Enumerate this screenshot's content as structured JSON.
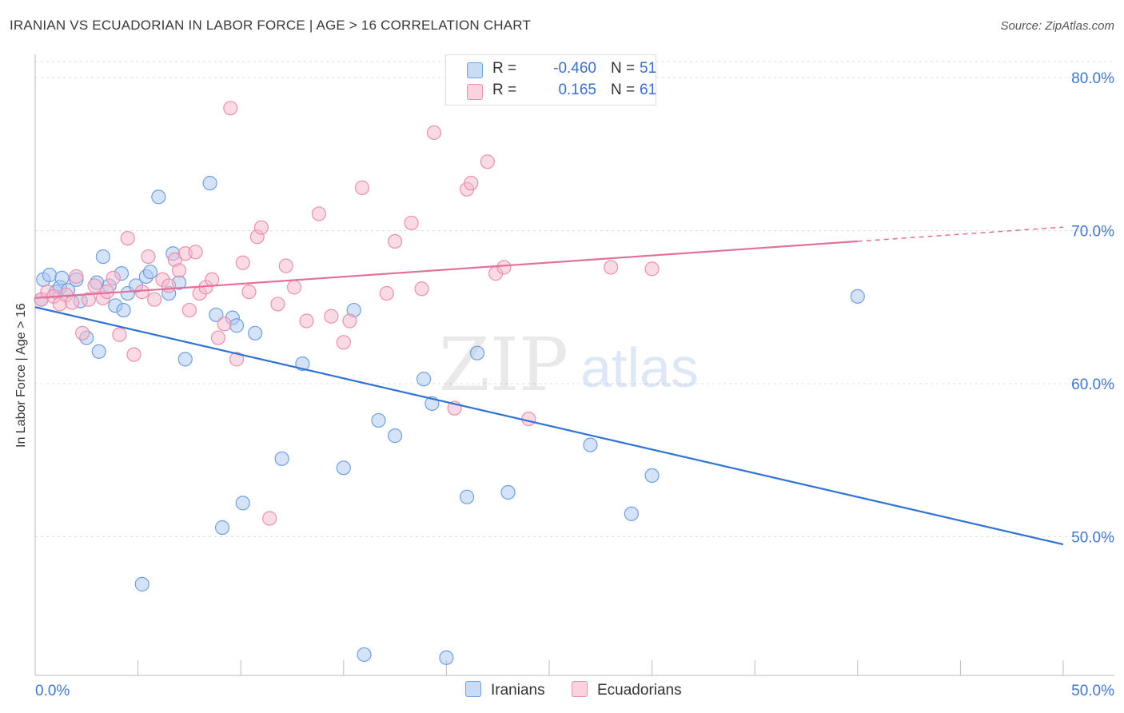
{
  "header": {
    "title": "IRANIAN VS ECUADORIAN IN LABOR FORCE | AGE > 16 CORRELATION CHART",
    "source": "Source: ZipAtlas.com"
  },
  "watermark": {
    "zip": "ZIP",
    "atlas": "atlas"
  },
  "legend": {
    "rows": [
      {
        "r_label": "R =",
        "r_value": "-0.460",
        "n_label": "N =",
        "n_value": "51",
        "color": "#a9c7f0"
      },
      {
        "r_label": "R =",
        "r_value": "0.165",
        "n_label": "N =",
        "n_value": "61",
        "color": "#f5b8cb"
      }
    ],
    "bottom": [
      {
        "label": "Iranians",
        "color": "#a9c7f0"
      },
      {
        "label": "Ecuadorians",
        "color": "#f5b8cb"
      }
    ]
  },
  "chart_data": {
    "type": "scatter",
    "title": "IRANIAN VS ECUADORIAN IN LABOR FORCE | AGE > 16 CORRELATION CHART",
    "xlabel": "",
    "ylabel": "In Labor Force | Age > 16",
    "xlim": [
      0,
      50
    ],
    "ylim": [
      40,
      83
    ],
    "x_tick_labels": [
      "0.0%",
      "50.0%"
    ],
    "y_ticks": [
      50,
      60,
      70,
      80
    ],
    "y_tick_labels": [
      "50.0%",
      "60.0%",
      "70.0%",
      "80.0%"
    ],
    "grid": true,
    "legend_position": "top-center",
    "series": [
      {
        "name": "Iranians",
        "color": "#6fa0e0",
        "fill": "#a9c7f0",
        "trend": {
          "x": [
            0,
            50
          ],
          "y": [
            65.0,
            49.5
          ],
          "color": "#2f72d6"
        },
        "points": [
          [
            0.3,
            65.5
          ],
          [
            0.4,
            66.8
          ],
          [
            0.7,
            67.1
          ],
          [
            1.0,
            66.0
          ],
          [
            1.2,
            66.3
          ],
          [
            1.3,
            66.9
          ],
          [
            1.6,
            66.1
          ],
          [
            2.0,
            66.8
          ],
          [
            2.2,
            65.4
          ],
          [
            2.5,
            63.0
          ],
          [
            3.0,
            66.6
          ],
          [
            3.1,
            62.1
          ],
          [
            3.3,
            68.3
          ],
          [
            3.6,
            66.4
          ],
          [
            3.9,
            65.1
          ],
          [
            4.2,
            67.2
          ],
          [
            4.3,
            64.8
          ],
          [
            4.5,
            65.9
          ],
          [
            4.9,
            66.4
          ],
          [
            5.2,
            46.9
          ],
          [
            5.4,
            67.0
          ],
          [
            5.6,
            67.3
          ],
          [
            6.0,
            72.2
          ],
          [
            6.5,
            65.9
          ],
          [
            6.7,
            68.5
          ],
          [
            7.0,
            66.6
          ],
          [
            7.3,
            61.6
          ],
          [
            8.5,
            73.1
          ],
          [
            8.8,
            64.5
          ],
          [
            9.1,
            50.6
          ],
          [
            9.6,
            64.3
          ],
          [
            9.8,
            63.8
          ],
          [
            10.1,
            52.2
          ],
          [
            10.7,
            63.3
          ],
          [
            12.0,
            55.1
          ],
          [
            13.0,
            61.3
          ],
          [
            15.0,
            54.5
          ],
          [
            15.5,
            64.8
          ],
          [
            16.0,
            42.3
          ],
          [
            16.7,
            57.6
          ],
          [
            17.5,
            56.6
          ],
          [
            18.9,
            60.3
          ],
          [
            19.3,
            58.7
          ],
          [
            20.0,
            42.1
          ],
          [
            21.0,
            52.6
          ],
          [
            21.5,
            62.0
          ],
          [
            23.0,
            52.9
          ],
          [
            27.0,
            56.0
          ],
          [
            29.0,
            51.5
          ],
          [
            30.0,
            54.0
          ],
          [
            40.0,
            65.7
          ]
        ]
      },
      {
        "name": "Ecuadorians",
        "color": "#ec8fab",
        "fill": "#f5b8cb",
        "trend": {
          "x": [
            0,
            40
          ],
          "y": [
            65.6,
            69.3
          ],
          "color": "#e2709a"
        },
        "points": [
          [
            0.3,
            65.5
          ],
          [
            0.6,
            66.0
          ],
          [
            0.9,
            65.7
          ],
          [
            1.2,
            65.2
          ],
          [
            1.5,
            65.8
          ],
          [
            1.8,
            65.3
          ],
          [
            2.0,
            67.0
          ],
          [
            2.3,
            63.3
          ],
          [
            2.6,
            65.5
          ],
          [
            2.9,
            66.4
          ],
          [
            3.3,
            65.6
          ],
          [
            3.5,
            66.0
          ],
          [
            3.8,
            66.9
          ],
          [
            4.1,
            63.2
          ],
          [
            4.5,
            69.5
          ],
          [
            4.8,
            61.9
          ],
          [
            5.2,
            66.0
          ],
          [
            5.5,
            68.3
          ],
          [
            5.8,
            65.5
          ],
          [
            6.2,
            66.8
          ],
          [
            6.5,
            66.4
          ],
          [
            6.8,
            68.1
          ],
          [
            7.0,
            67.4
          ],
          [
            7.3,
            68.5
          ],
          [
            7.5,
            64.8
          ],
          [
            7.8,
            68.6
          ],
          [
            8.0,
            65.9
          ],
          [
            8.3,
            66.3
          ],
          [
            8.6,
            66.8
          ],
          [
            8.9,
            63.0
          ],
          [
            9.2,
            63.9
          ],
          [
            9.5,
            78.0
          ],
          [
            9.8,
            61.6
          ],
          [
            10.1,
            67.9
          ],
          [
            10.4,
            66.0
          ],
          [
            10.8,
            69.6
          ],
          [
            11.0,
            70.2
          ],
          [
            11.4,
            51.2
          ],
          [
            11.8,
            65.2
          ],
          [
            12.2,
            67.7
          ],
          [
            12.6,
            66.3
          ],
          [
            13.2,
            64.1
          ],
          [
            13.8,
            71.1
          ],
          [
            14.4,
            64.4
          ],
          [
            15.0,
            62.7
          ],
          [
            15.3,
            64.1
          ],
          [
            15.9,
            72.8
          ],
          [
            17.1,
            65.9
          ],
          [
            17.5,
            69.3
          ],
          [
            18.3,
            70.5
          ],
          [
            18.8,
            66.2
          ],
          [
            19.4,
            76.4
          ],
          [
            20.4,
            58.4
          ],
          [
            21.0,
            72.7
          ],
          [
            21.2,
            73.1
          ],
          [
            22.0,
            74.5
          ],
          [
            22.4,
            67.2
          ],
          [
            22.8,
            67.6
          ],
          [
            24.0,
            57.7
          ],
          [
            28.0,
            67.6
          ],
          [
            30.0,
            67.5
          ]
        ]
      }
    ]
  }
}
